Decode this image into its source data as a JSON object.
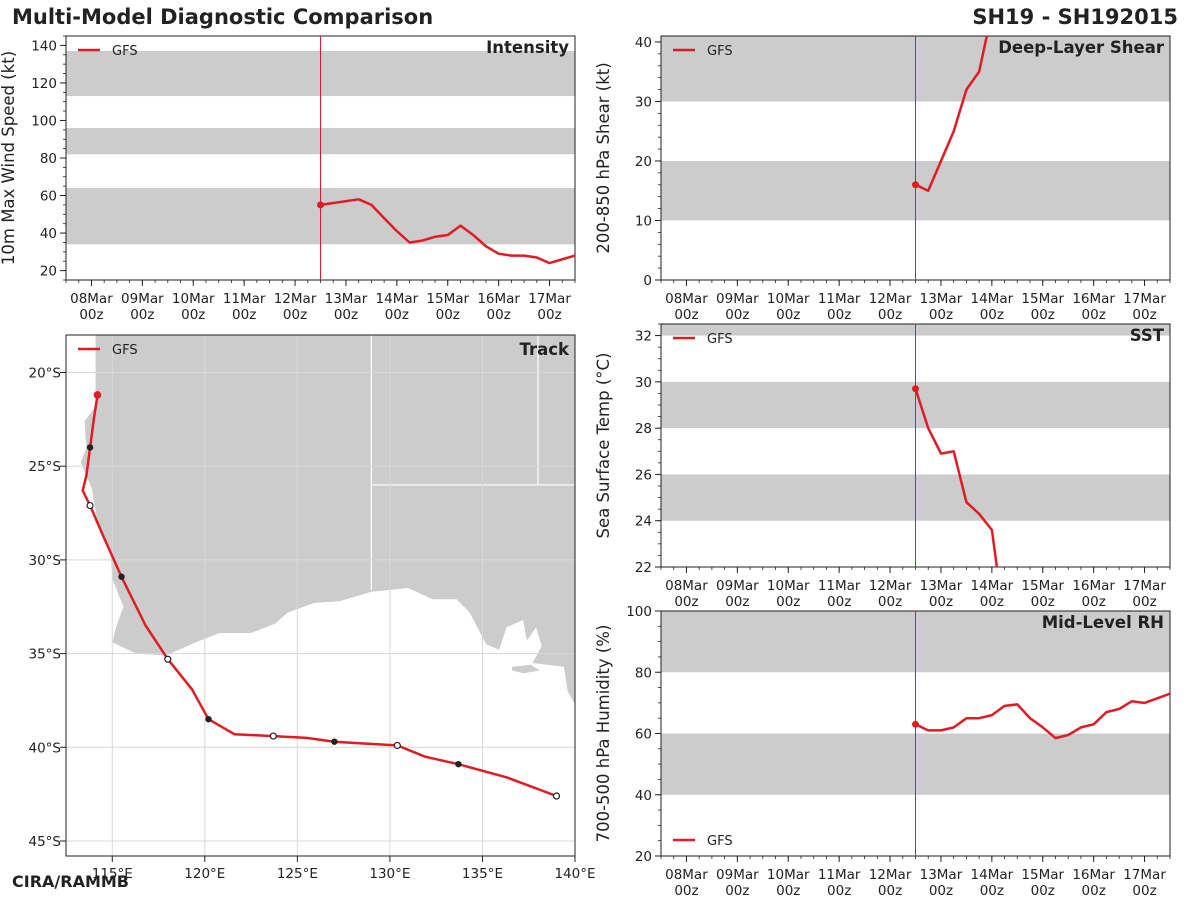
{
  "header": {
    "title": "Multi-Model Diagnostic Comparison",
    "storm": "SH19 - SH192015",
    "credit": "CIRA/RAMMB"
  },
  "colors": {
    "model": "#e01b24",
    "band": "#cccccc",
    "land": "#cccccc",
    "grid": "#d8d8d8"
  },
  "time_axis": {
    "tick_days": [
      0,
      1,
      2,
      3,
      4,
      5,
      6,
      7,
      8,
      9
    ],
    "tick_labels": [
      "08Mar\n00z",
      "09Mar\n00z",
      "10Mar\n00z",
      "11Mar\n00z",
      "12Mar\n00z",
      "13Mar\n00z",
      "14Mar\n00z",
      "15Mar\n00z",
      "16Mar\n00z",
      "17Mar\n00z"
    ],
    "xlim": [
      -0.5,
      9.5
    ],
    "init_day": 4.5
  },
  "chart_data": [
    {
      "id": "intensity",
      "type": "line",
      "title": "Intensity",
      "ylabel": "10m Max Wind Speed (kt)",
      "ylim": [
        15,
        145
      ],
      "yticks": [
        20,
        40,
        60,
        80,
        100,
        120,
        140
      ],
      "minor_step": 5,
      "bands": [
        [
          34,
          64
        ],
        [
          82,
          96
        ],
        [
          113,
          137
        ]
      ],
      "legend": "GFS",
      "series": [
        {
          "name": "GFS",
          "x": [
            4.5,
            5.25,
            5.5,
            5.75,
            6.0,
            6.25,
            6.5,
            6.75,
            7.0,
            7.25,
            7.5,
            7.75,
            8.0,
            8.25,
            8.5,
            8.75,
            9.0,
            9.5
          ],
          "y": [
            55,
            58,
            55,
            48,
            41,
            35,
            36,
            38,
            39,
            44,
            39,
            33,
            29,
            28,
            28,
            27,
            24,
            28
          ]
        }
      ]
    },
    {
      "id": "shear",
      "type": "line",
      "title": "Deep-Layer Shear",
      "ylabel": "200-850 hPa Shear (kt)",
      "ylim": [
        0,
        41
      ],
      "yticks": [
        0,
        10,
        20,
        30,
        40
      ],
      "minor_step": 2,
      "bands": [
        [
          10,
          20
        ],
        [
          30,
          41
        ]
      ],
      "legend": "GFS",
      "series": [
        {
          "name": "GFS",
          "x": [
            4.5,
            4.75,
            5.0,
            5.25,
            5.5,
            5.75,
            5.9
          ],
          "y": [
            16,
            15,
            20,
            25,
            32,
            35,
            41
          ]
        }
      ]
    },
    {
      "id": "sst",
      "type": "line",
      "title": "SST",
      "ylabel": "Sea Surface Temp (°C)",
      "ylim": [
        22,
        32.5
      ],
      "yticks": [
        22,
        24,
        26,
        28,
        30,
        32
      ],
      "minor_step": 0.5,
      "bands": [
        [
          24,
          26
        ],
        [
          28,
          30
        ],
        [
          32,
          32.5
        ]
      ],
      "legend": "GFS",
      "series": [
        {
          "name": "GFS",
          "x": [
            4.5,
            4.75,
            5.0,
            5.25,
            5.5,
            5.75,
            6.0,
            6.1
          ],
          "y": [
            29.7,
            28.0,
            26.9,
            27.0,
            24.8,
            24.3,
            23.6,
            22.0
          ]
        }
      ]
    },
    {
      "id": "rh",
      "type": "line",
      "title": "Mid-Level RH",
      "ylabel": "700-500 hPa Humidity (%)",
      "ylim": [
        20,
        100
      ],
      "yticks": [
        20,
        40,
        60,
        80,
        100
      ],
      "minor_step": 5,
      "bands": [
        [
          40,
          60
        ],
        [
          80,
          100
        ]
      ],
      "legend": "GFS",
      "series": [
        {
          "name": "GFS",
          "x": [
            4.5,
            4.75,
            5.0,
            5.25,
            5.5,
            5.75,
            6.0,
            6.25,
            6.5,
            6.75,
            7.0,
            7.25,
            7.5,
            7.75,
            8.0,
            8.25,
            8.5,
            8.75,
            9.0,
            9.25,
            9.5
          ],
          "y": [
            63,
            61,
            61,
            62,
            65,
            65,
            66,
            69,
            69.5,
            65,
            62,
            58.5,
            59.5,
            62,
            63,
            67,
            68,
            70.5,
            70,
            71.5,
            73
          ]
        }
      ]
    },
    {
      "id": "track",
      "type": "scatter",
      "title": "Track",
      "xlim": [
        112.5,
        140.0
      ],
      "ylim": [
        -45.8,
        -18.0
      ],
      "xticks": [
        115,
        120,
        125,
        130,
        135,
        140
      ],
      "xtick_labels": [
        "115°E",
        "120°E",
        "125°E",
        "130°E",
        "135°E",
        "140°E"
      ],
      "yticks": [
        -20,
        -25,
        -30,
        -35,
        -40,
        -45
      ],
      "ytick_labels": [
        "20°S",
        "25°S",
        "30°S",
        "35°S",
        "40°S",
        "45°S"
      ],
      "legend": "GFS",
      "series": [
        {
          "name": "GFS",
          "lon": [
            114.2,
            114.0,
            113.8,
            113.6,
            113.4,
            113.8,
            114.5,
            115.5,
            116.8,
            118.0,
            119.3,
            120.2,
            121.6,
            123.7,
            125.5,
            127.0,
            128.7,
            130.4,
            131.9,
            133.7,
            136.3,
            139.0
          ],
          "lat": [
            -21.2,
            -22.5,
            -24.0,
            -25.5,
            -26.3,
            -27.1,
            -28.7,
            -30.9,
            -33.5,
            -35.3,
            -36.9,
            -38.5,
            -39.3,
            -39.4,
            -39.5,
            -39.7,
            -39.8,
            -39.9,
            -40.5,
            -40.9,
            -41.6,
            -42.6
          ],
          "marker": [
            "init",
            "none",
            "filled",
            "none",
            "none",
            "open",
            "none",
            "filled",
            "none",
            "open",
            "none",
            "filled",
            "none",
            "open",
            "none",
            "filled",
            "none",
            "open",
            "none",
            "filled",
            "none",
            "open"
          ]
        }
      ]
    }
  ]
}
